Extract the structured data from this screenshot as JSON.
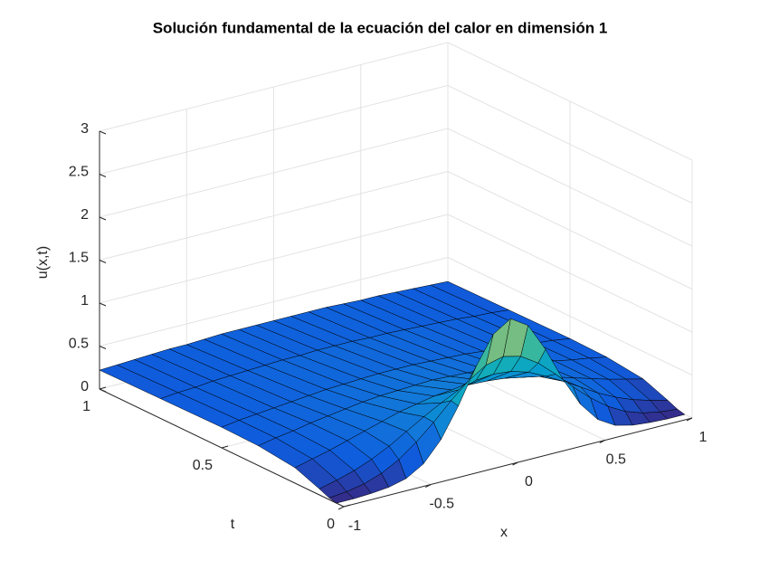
{
  "chart_data": {
    "type": "surface",
    "title": "Solución fundamental de la ecuación del calor en dimensión 1",
    "xlabel": "x",
    "ylabel": "t",
    "zlabel": "u(x,t)",
    "x": [
      -1,
      -0.9,
      -0.8,
      -0.7,
      -0.6,
      -0.5,
      -0.4,
      -0.3,
      -0.2,
      -0.1,
      0,
      0.1,
      0.2,
      0.3,
      0.4,
      0.5,
      0.6,
      0.7,
      0.8,
      0.9,
      1
    ],
    "t": [
      0.03,
      0.06,
      0.1,
      0.2,
      0.35,
      0.5,
      0.75,
      1
    ],
    "z": [
      [
        0,
        0,
        0.01,
        0.03,
        0.08,
        0.2,
        0.43,
        0.77,
        1.17,
        1.5,
        1.63,
        1.5,
        1.17,
        0.77,
        0.43,
        0.2,
        0.08,
        0.03,
        0.01,
        0,
        0
      ],
      [
        0.02,
        0.04,
        0.08,
        0.15,
        0.26,
        0.41,
        0.59,
        0.79,
        0.97,
        1.1,
        1.15,
        1.1,
        0.97,
        0.79,
        0.59,
        0.41,
        0.26,
        0.15,
        0.08,
        0.04,
        0.02
      ],
      [
        0.07,
        0.12,
        0.18,
        0.26,
        0.36,
        0.48,
        0.6,
        0.71,
        0.81,
        0.87,
        0.89,
        0.87,
        0.81,
        0.71,
        0.6,
        0.48,
        0.36,
        0.26,
        0.18,
        0.12,
        0.07
      ],
      [
        0.18,
        0.23,
        0.28,
        0.34,
        0.4,
        0.46,
        0.52,
        0.56,
        0.6,
        0.62,
        0.63,
        0.62,
        0.6,
        0.56,
        0.52,
        0.46,
        0.4,
        0.34,
        0.28,
        0.23,
        0.18
      ],
      [
        0.23,
        0.27,
        0.3,
        0.34,
        0.37,
        0.4,
        0.43,
        0.45,
        0.46,
        0.47,
        0.48,
        0.47,
        0.46,
        0.45,
        0.43,
        0.4,
        0.37,
        0.34,
        0.3,
        0.27,
        0.23
      ],
      [
        0.24,
        0.27,
        0.29,
        0.31,
        0.33,
        0.35,
        0.37,
        0.38,
        0.39,
        0.4,
        0.4,
        0.4,
        0.39,
        0.38,
        0.37,
        0.35,
        0.33,
        0.31,
        0.29,
        0.27,
        0.24
      ],
      [
        0.23,
        0.25,
        0.26,
        0.28,
        0.29,
        0.3,
        0.31,
        0.32,
        0.32,
        0.33,
        0.33,
        0.33,
        0.32,
        0.32,
        0.31,
        0.3,
        0.29,
        0.28,
        0.26,
        0.25,
        0.23
      ],
      [
        0.22,
        0.23,
        0.24,
        0.25,
        0.26,
        0.26,
        0.27,
        0.28,
        0.28,
        0.28,
        0.28,
        0.28,
        0.28,
        0.28,
        0.27,
        0.26,
        0.26,
        0.25,
        0.24,
        0.23,
        0.22
      ]
    ],
    "xlim": [
      -1,
      1
    ],
    "ylim": [
      0,
      1
    ],
    "zlim": [
      0,
      3
    ],
    "xticks": [
      -1,
      -0.5,
      0,
      0.5,
      1
    ],
    "yticks": [
      0,
      0.5,
      1
    ],
    "zticks": [
      0,
      0.5,
      1,
      1.5,
      2,
      2.5,
      3
    ],
    "grid": true
  }
}
